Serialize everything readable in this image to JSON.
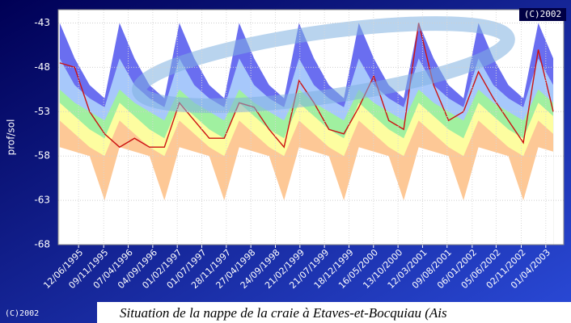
{
  "chart_data": {
    "type": "area",
    "y_label": "prof/sol",
    "copyright_top": "(C)2002",
    "copyright_bottom": "(C)2002",
    "caption": "Situation de la nappe de la craie à Etaves-et-Bocquiau (Ais",
    "x": [
      1995.125,
      1995.375,
      1995.625,
      1995.875,
      1996.125,
      1996.375,
      1996.625,
      1996.875,
      1997.125,
      1997.375,
      1997.625,
      1997.875,
      1998.125,
      1998.375,
      1998.625,
      1998.875,
      1999.125,
      1999.375,
      1999.625,
      1999.875,
      2000.125,
      2000.375,
      2000.625,
      2000.875,
      2001.125,
      2001.375,
      2001.625,
      2001.875,
      2002.125,
      2002.375,
      2002.625,
      2002.875,
      2003.125,
      2003.375
    ],
    "xlim": [
      1995.1,
      2003.55
    ],
    "xticks": [
      {
        "value": 1995.44,
        "label": "12/06/1995"
      },
      {
        "value": 1995.86,
        "label": "09/11/1995"
      },
      {
        "value": 1996.27,
        "label": "07/04/1996"
      },
      {
        "value": 1996.68,
        "label": "04/09/1996"
      },
      {
        "value": 1997.09,
        "label": "01/02/1997"
      },
      {
        "value": 1997.5,
        "label": "01/07/1997"
      },
      {
        "value": 1997.91,
        "label": "28/11/1997"
      },
      {
        "value": 1998.32,
        "label": "27/04/1998"
      },
      {
        "value": 1998.73,
        "label": "24/09/1998"
      },
      {
        "value": 1999.14,
        "label": "21/02/1999"
      },
      {
        "value": 1999.55,
        "label": "21/07/1999"
      },
      {
        "value": 1999.96,
        "label": "18/12/1999"
      },
      {
        "value": 2000.37,
        "label": "16/05/2000"
      },
      {
        "value": 2000.78,
        "label": "13/10/2000"
      },
      {
        "value": 2001.19,
        "label": "12/03/2001"
      },
      {
        "value": 2001.6,
        "label": "09/08/2001"
      },
      {
        "value": 2002.02,
        "label": "06/01/2002"
      },
      {
        "value": 2002.42,
        "label": "05/06/2002"
      },
      {
        "value": 2002.84,
        "label": "02/11/2002"
      },
      {
        "value": 2003.25,
        "label": "01/04/2003"
      }
    ],
    "ylim": [
      -68,
      -41.5
    ],
    "yticks": [
      -43,
      -48,
      -53,
      -58,
      -63,
      -68
    ],
    "grid": true,
    "series": [
      {
        "kind": "area",
        "color": "#6a6ef0",
        "values": [
          -43,
          -47,
          -50,
          -51.5,
          -43,
          -47,
          -50,
          -51.5,
          -43,
          -47,
          -50,
          -51.5,
          -43,
          -47,
          -50,
          -51.5,
          -43,
          -47,
          -50,
          -51.5,
          -43,
          -47,
          -50,
          -51.5,
          -43,
          -47,
          -50,
          -51.5,
          -43,
          -47,
          -50,
          -51.5,
          -43,
          -47
        ]
      },
      {
        "kind": "area",
        "color": "#a7c8fb",
        "values": [
          -47,
          -50,
          -51.5,
          -52.5,
          -47,
          -50,
          -51.5,
          -52.5,
          -47,
          -50,
          -51.5,
          -52.5,
          -47,
          -50,
          -51.5,
          -52.5,
          -47,
          -50,
          -51.5,
          -52.5,
          -47,
          -50,
          -51.5,
          -52.5,
          -47,
          -50,
          -51.5,
          -52.5,
          -47,
          -50,
          -51.5,
          -52.5,
          -47,
          -50
        ]
      },
      {
        "kind": "area",
        "color": "#a0f0a0",
        "values": [
          -50.5,
          -52,
          -53,
          -54,
          -50.5,
          -52,
          -53,
          -54,
          -50.5,
          -52,
          -53,
          -54,
          -50.5,
          -52,
          -53,
          -54,
          -50.5,
          -52,
          -53,
          -54,
          -50.5,
          -52,
          -53,
          -54,
          -50.5,
          -52,
          -53,
          -54,
          -50.5,
          -52,
          -53,
          -54,
          -50.5,
          -52
        ]
      },
      {
        "kind": "area",
        "color": "#fdfda0",
        "values": [
          -52,
          -53.5,
          -55,
          -56,
          -52,
          -53.5,
          -55,
          -56,
          -52,
          -53.5,
          -55,
          -56,
          -52,
          -53.5,
          -55,
          -56,
          -52,
          -53.5,
          -55,
          -56,
          -52,
          -53.5,
          -55,
          -56,
          -52,
          -53.5,
          -55,
          -56,
          -52,
          -53.5,
          -55,
          -56,
          -52,
          -53.5
        ]
      },
      {
        "kind": "area",
        "color": "#fdc896",
        "values": [
          -54,
          -55.5,
          -57,
          -58,
          -54,
          -55.5,
          -57,
          -58,
          -54,
          -55.5,
          -57,
          -58,
          -54,
          -55.5,
          -57,
          -58,
          -54,
          -55.5,
          -57,
          -58,
          -54,
          -55.5,
          -57,
          -58,
          -54,
          -55.5,
          -57,
          -58,
          -54,
          -55.5,
          -57,
          -58,
          -54,
          -55.5
        ]
      },
      {
        "kind": "area",
        "color": "#ffffff",
        "values": [
          -57,
          -57.5,
          -58,
          -63,
          -57,
          -57.5,
          -58,
          -63,
          -57,
          -57.5,
          -58,
          -63,
          -57,
          -57.5,
          -58,
          -63,
          -57,
          -57.5,
          -58,
          -63,
          -57,
          -57.5,
          -58,
          -63,
          -57,
          -57.5,
          -58,
          -63,
          -57,
          -57.5,
          -58,
          -63,
          -57,
          -57.5
        ]
      },
      {
        "kind": "line",
        "color": "#cc1111",
        "values": [
          -47.5,
          -48,
          -53,
          -55.5,
          -57,
          -56,
          -57,
          -57,
          -52,
          -54,
          -56,
          -56,
          -52,
          -52.5,
          -55,
          -57,
          -49.5,
          -52,
          -55,
          -55.5,
          -52.5,
          -49,
          -54,
          -55,
          -43,
          -50,
          -54,
          -53,
          -48.5,
          -51.5,
          -54,
          -56.5,
          -46,
          -53
        ]
      }
    ]
  }
}
